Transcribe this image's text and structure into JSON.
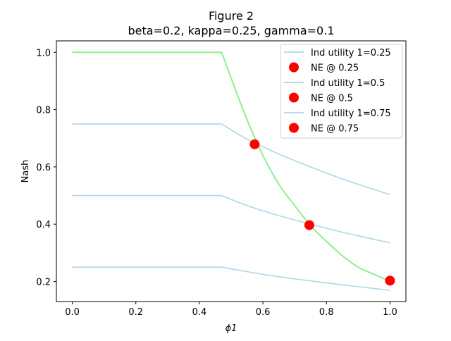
{
  "chart_data": {
    "type": "line",
    "title": "Figure 2",
    "subtitle": "beta=0.2, kappa=0.25, gamma=0.1",
    "xlabel": "ϕ1",
    "ylabel": "Nash",
    "xlim": [
      -0.05,
      1.05
    ],
    "ylim": [
      0.13,
      1.04
    ],
    "xticks": [
      0.0,
      0.2,
      0.4,
      0.6,
      0.8,
      1.0
    ],
    "xtick_labels": [
      "0.0",
      "0.2",
      "0.4",
      "0.6",
      "0.8",
      "1.0"
    ],
    "yticks": [
      0.2,
      0.4,
      0.6,
      0.8,
      1.0
    ],
    "ytick_labels": [
      "0.2",
      "0.4",
      "0.6",
      "0.8",
      "1.0"
    ],
    "grid": false,
    "legend_position": "top-right",
    "kink_x": 0.47,
    "series": [
      {
        "name": "Ind utility 1=0.25",
        "kind": "line",
        "color": "#add8e6",
        "x": [
          0.0,
          0.47,
          0.6,
          0.7,
          0.8,
          0.9,
          1.0
        ],
        "y": [
          0.25,
          0.25,
          0.225,
          0.209,
          0.195,
          0.182,
          0.169
        ]
      },
      {
        "name": "NE @ 0.25",
        "kind": "marker",
        "color": "#ff0000",
        "x": [
          1.0
        ],
        "y": [
          0.203
        ]
      },
      {
        "name": "Ind utility 1=0.5",
        "kind": "line",
        "color": "#add8e6",
        "x": [
          0.0,
          0.47,
          0.55,
          0.65,
          0.75,
          0.85,
          1.0
        ],
        "y": [
          0.5,
          0.5,
          0.465,
          0.43,
          0.4,
          0.372,
          0.335
        ]
      },
      {
        "name": "NE @ 0.5",
        "kind": "marker",
        "color": "#ff0000",
        "x": [
          0.746
        ],
        "y": [
          0.397
        ]
      },
      {
        "name": "Ind utility 1=0.75",
        "kind": "line",
        "color": "#add8e6",
        "x": [
          0.0,
          0.47,
          0.55,
          0.65,
          0.75,
          0.85,
          1.0
        ],
        "y": [
          0.75,
          0.75,
          0.697,
          0.645,
          0.6,
          0.558,
          0.503
        ]
      },
      {
        "name": "NE @ 0.75",
        "kind": "marker",
        "color": "#ff0000",
        "x": [
          0.574
        ],
        "y": [
          0.679
        ]
      }
    ],
    "ne_curve": {
      "color": "#90ee90",
      "x": [
        0.0,
        0.47,
        0.5,
        0.55,
        0.6,
        0.65,
        0.7,
        0.75,
        0.8,
        0.85,
        0.9,
        0.95,
        1.0
      ],
      "y": [
        1.0,
        1.0,
        0.91,
        0.765,
        0.64,
        0.54,
        0.465,
        0.395,
        0.34,
        0.29,
        0.25,
        0.225,
        0.2
      ]
    }
  }
}
